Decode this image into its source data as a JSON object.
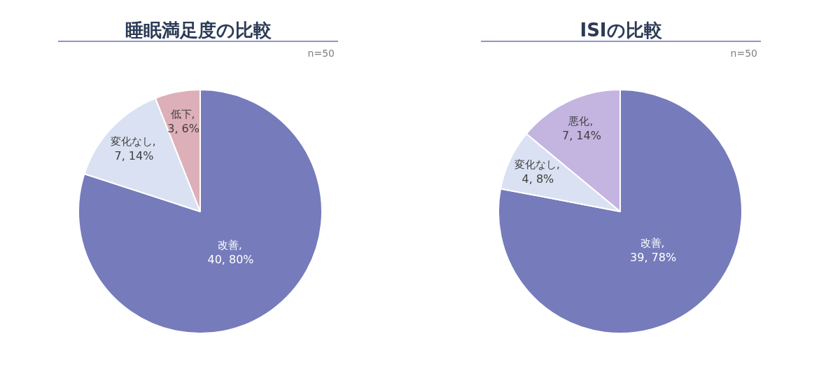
{
  "chart_data": [
    {
      "type": "pie",
      "title": "睡眠満足度の比較",
      "annotations": [
        "n=50"
      ],
      "categories": [
        "改善",
        "変化なし",
        "低下"
      ],
      "values": [
        40,
        7,
        3
      ],
      "colors": [
        "#757bbb",
        "#dae1f2",
        "#ddafb8"
      ],
      "data_labels": true,
      "value_labels": [
        ", 40, 80%",
        ", 7, 14%",
        ", 3, 6%"
      ],
      "legend": false
    },
    {
      "type": "pie",
      "title": "ISIの比較",
      "annotations": [
        "n=50"
      ],
      "categories": [
        "改善",
        "変化なし",
        "悪化"
      ],
      "values": [
        39,
        4,
        7
      ],
      "colors": [
        "#757bbb",
        "#dae1f2",
        "#c3b5e0"
      ],
      "data_labels": true,
      "value_labels": [
        ", 39, 78%",
        ", 4, 8%",
        ", 7, 14%"
      ],
      "legend": false
    }
  ]
}
